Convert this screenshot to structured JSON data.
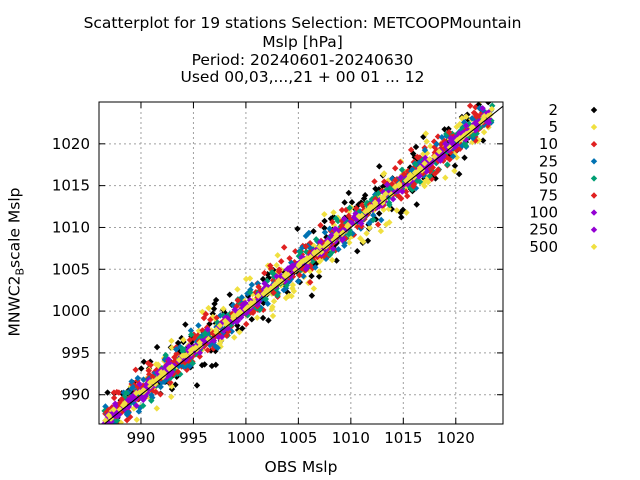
{
  "chart_data": {
    "type": "scatter",
    "title_lines": [
      "Scatterplot for   19 stations Selection: METCOOPMountain",
      "Mslp [hPa]",
      "Period: 20240601-20240630",
      "Used 00,03,...,21 + 00 01 ... 12"
    ],
    "xlabel": "OBS Mslp",
    "ylabel_main": "MNWC2",
    "ylabel_sub": "B",
    "ylabel_rest": "scale Mslp",
    "xlim": [
      986,
      1024.5
    ],
    "ylim": [
      986.5,
      1025
    ],
    "x_ticks": [
      990,
      995,
      1000,
      1005,
      1010,
      1015,
      1020
    ],
    "y_ticks": [
      990,
      995,
      1000,
      1005,
      1010,
      1015,
      1020
    ],
    "grid": true,
    "diagonal": true,
    "legend_position": "right",
    "series": [
      {
        "name": "2",
        "color": "#000000",
        "spread": 1.9
      },
      {
        "name": "5",
        "color": "#f0e040",
        "spread": 1.6
      },
      {
        "name": "10",
        "color": "#e02020",
        "spread": 1.4
      },
      {
        "name": "25",
        "color": "#0072b2",
        "spread": 1.15
      },
      {
        "name": "50",
        "color": "#009e73",
        "spread": 0.95
      },
      {
        "name": "75",
        "color": "#e02020",
        "spread": 0.75
      },
      {
        "name": "100",
        "color": "#9400d3",
        "spread": 0.55
      },
      {
        "name": "250",
        "color": "#9400d3",
        "spread": 0.4
      },
      {
        "name": "500",
        "color": "#f0e040",
        "spread": 0.2
      }
    ],
    "x_range_data": [
      986.5,
      1023.5
    ]
  }
}
